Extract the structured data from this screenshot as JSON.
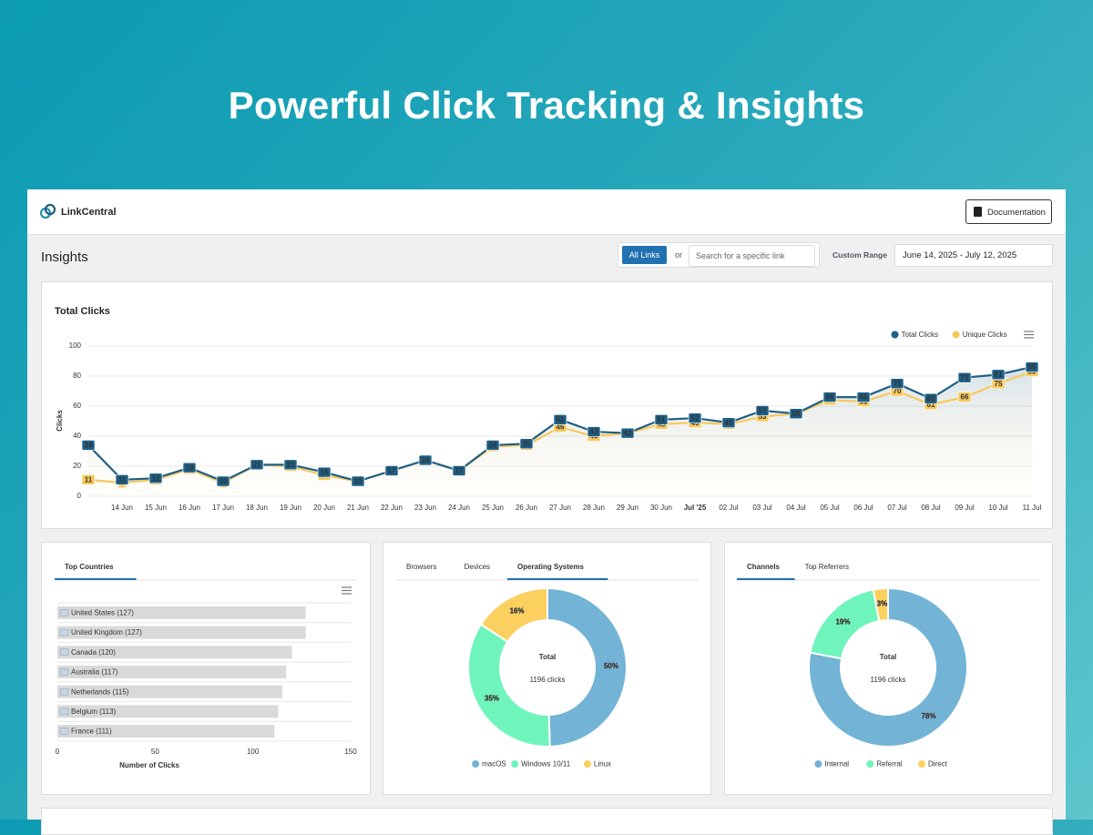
{
  "headline": "Powerful Click Tracking & Insights",
  "app": {
    "brand": "LinkCentral",
    "documentation": "Documentation",
    "page_title": "Insights",
    "all_links": "All Links",
    "or": "or",
    "search_placeholder": "Search for a specific link",
    "range_label": "Custom Range",
    "range_value": "June 14, 2025 - July 12, 2025"
  },
  "chart_data": [
    {
      "type": "line",
      "title": "Total Clicks",
      "y_label": "Clicks",
      "categories": [
        null,
        "14 Jun",
        "15 Jun",
        "16 Jun",
        "17 Jun",
        "18 Jun",
        "19 Jun",
        "20 Jun",
        "21 Jun",
        "22 Jun",
        "23 Jun",
        "24 Jun",
        "25 Jun",
        "26 Jun",
        "27 Jun",
        "28 Jun",
        "29 Jun",
        "30 Jun",
        "Jul '25",
        "02 Jul",
        "03 Jul",
        "04 Jul",
        "05 Jul",
        "06 Jul",
        "07 Jul",
        "08 Jul",
        "09 Jul",
        "10 Jul",
        "11 Jul"
      ],
      "series": [
        {
          "name": "Total Clicks",
          "color": "#1e5f86",
          "values": [
            34,
            11,
            12,
            19,
            10,
            21,
            21,
            16,
            10,
            17,
            24,
            17,
            34,
            35,
            51,
            43,
            42,
            51,
            52,
            49,
            57,
            55,
            66,
            66,
            75,
            65,
            79,
            81,
            86
          ]
        },
        {
          "name": "Unique Clicks",
          "color": "#f7c95c",
          "values": [
            11,
            9,
            11,
            18,
            9,
            21,
            20,
            14,
            10,
            17,
            24,
            17,
            33,
            34,
            46,
            40,
            42,
            48,
            49,
            48,
            53,
            55,
            64,
            63,
            70,
            61,
            66,
            75,
            83
          ]
        }
      ],
      "ylim": [
        0,
        100
      ],
      "yticks": [
        0,
        20,
        40,
        60,
        80,
        100
      ],
      "grid": true,
      "legend": "top-right"
    },
    {
      "type": "hbar",
      "tabs": [
        "Top Countries"
      ],
      "active_tab": 0,
      "categories": [
        "United States (127)",
        "United Kingdom (127)",
        "Canada (120)",
        "Australia (117)",
        "Netherlands (115)",
        "Belgium (113)",
        "France (111)"
      ],
      "values": [
        127,
        127,
        120,
        117,
        115,
        113,
        111
      ],
      "color": "#d9d9d9",
      "xlim": [
        0,
        150
      ],
      "xticks": [
        0,
        50,
        100,
        150
      ],
      "x_label": "Number of Clicks"
    },
    {
      "type": "donut",
      "tabs": [
        "Browsers",
        "Devices",
        "Operating Systems"
      ],
      "active_tab": 2,
      "categories": [
        "macOS",
        "Windows 10/11",
        "Linux"
      ],
      "values": [
        50,
        35,
        16
      ],
      "value_labels": [
        "50%",
        "35%",
        "16%"
      ],
      "colors": [
        "#73b4d6",
        "#6ff5bc",
        "#fcd05f"
      ],
      "center_title": "Total",
      "center_label": "1196 clicks"
    },
    {
      "type": "donut",
      "tabs": [
        "Channels",
        "Top Referrers"
      ],
      "active_tab": 0,
      "categories": [
        "Internal",
        "Referral",
        "Direct"
      ],
      "values": [
        78,
        19,
        3
      ],
      "value_labels": [
        "78%",
        "19%",
        "3%"
      ],
      "colors": [
        "#73b4d6",
        "#6ff5bc",
        "#fcd05f"
      ],
      "center_title": "Total",
      "center_label": "1196 clicks"
    }
  ]
}
